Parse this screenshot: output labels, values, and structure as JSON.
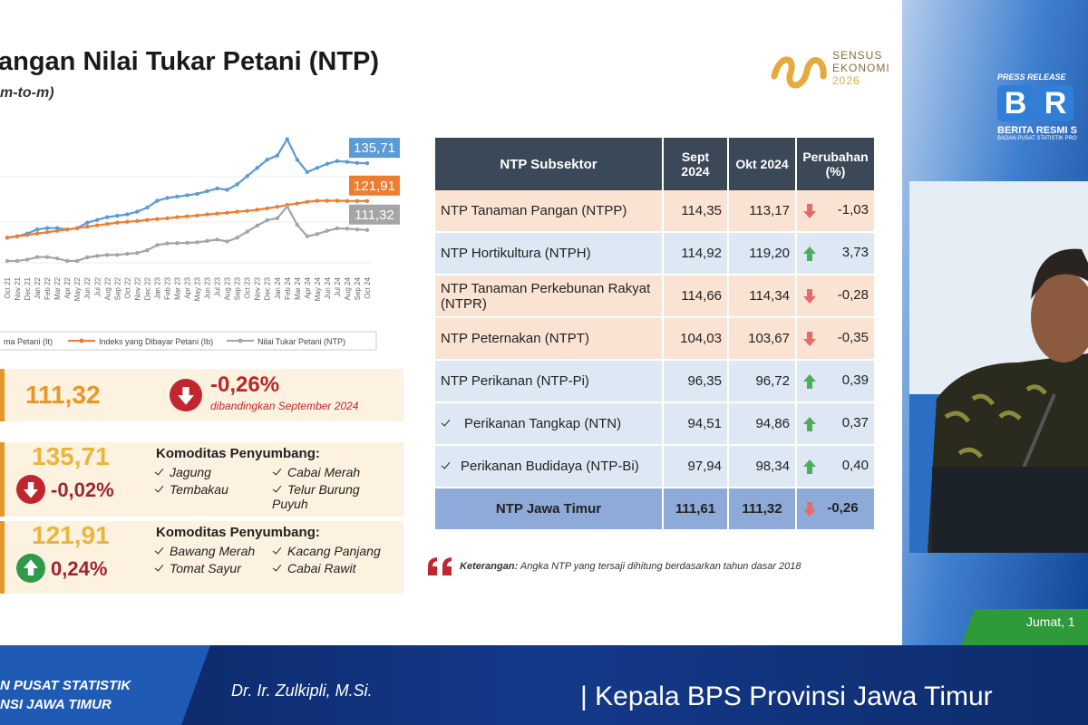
{
  "slide": {
    "title": "angan Nilai Tukar Petani (NTP)",
    "subtitle": "m-to-m)"
  },
  "chart_data": {
    "type": "line",
    "categories": [
      "Oct 21",
      "Nov 21",
      "Dec 21",
      "Jan 22",
      "Feb 22",
      "Mar 22",
      "Apr 22",
      "May 22",
      "Jun 22",
      "Jul 22",
      "Aug 22",
      "Sep 22",
      "Oct 22",
      "Nov 22",
      "Dec 22",
      "Jan 23",
      "Feb 23",
      "Mar 23",
      "Apr 23",
      "May 23",
      "Jun 23",
      "Jul 23",
      "Aug 23",
      "Sep 23",
      "Oct 23",
      "Nov 23",
      "Dec 23",
      "Jan 24",
      "Feb 24",
      "Mar 24",
      "Apr 24",
      "May 24",
      "Jun 24",
      "Jul 24",
      "Aug 24",
      "Sep 24",
      "Oct 24"
    ],
    "ylim": [
      96,
      149
    ],
    "series": [
      {
        "name": "ma Petani (It)",
        "color": "#5b9bd5",
        "values": [
          108.5,
          109,
          110,
          111.5,
          112,
          112,
          111.5,
          112,
          114,
          115,
          116,
          116.5,
          117,
          118,
          119.5,
          122,
          123,
          123.5,
          124,
          124.5,
          125.5,
          126.5,
          126,
          128,
          131,
          134,
          137,
          138.5,
          144.5,
          137,
          132.5,
          134,
          135.5,
          136.5,
          136.2,
          135.8,
          135.71
        ],
        "value_labels": [
          null,
          null,
          null,
          null,
          null,
          null,
          null,
          null,
          null,
          null,
          null,
          null,
          null,
          null,
          null,
          null,
          null,
          null,
          null,
          null,
          null,
          null,
          null,
          null,
          null,
          null,
          null,
          null,
          null,
          null,
          null,
          null,
          null,
          null,
          null,
          null,
          "135,71"
        ]
      },
      {
        "name": "Indeks yang Dibayar Petani (Ib)",
        "color": "#ed7d31",
        "values": [
          108.5,
          109,
          109.5,
          110,
          110.5,
          111,
          111.5,
          112,
          112.5,
          113,
          113.5,
          114,
          114.3,
          114.6,
          115,
          115.3,
          115.6,
          116,
          116.3,
          116.6,
          117,
          117.3,
          117.6,
          118,
          118.3,
          118.7,
          119.2,
          119.8,
          120.5,
          121,
          121.6,
          122,
          122,
          122,
          121.9,
          121.9,
          121.91
        ],
        "value_labels": [
          null,
          null,
          null,
          null,
          null,
          null,
          null,
          null,
          null,
          null,
          null,
          null,
          null,
          null,
          null,
          null,
          null,
          null,
          null,
          null,
          null,
          null,
          null,
          null,
          null,
          null,
          null,
          null,
          null,
          null,
          null,
          null,
          null,
          null,
          null,
          null,
          "121,91"
        ]
      },
      {
        "name": "Nilai Tukar Petani (NTP)",
        "color": "#a5a5a5",
        "values": [
          100,
          100,
          100.5,
          101.4,
          101.4,
          100.9,
          100,
          100,
          101.3,
          101.8,
          102.2,
          102.2,
          102.6,
          102.9,
          103.9,
          105.8,
          106.4,
          106.5,
          106.6,
          106.8,
          107.3,
          107.8,
          107.1,
          108.5,
          110.7,
          112.9,
          114.9,
          115.6,
          119.9,
          113.2,
          109,
          109.8,
          111,
          111.9,
          111.8,
          111.5,
          111.32
        ],
        "value_labels": [
          null,
          null,
          null,
          null,
          null,
          null,
          null,
          null,
          null,
          null,
          null,
          null,
          null,
          null,
          null,
          null,
          null,
          null,
          null,
          null,
          null,
          null,
          null,
          null,
          null,
          null,
          null,
          null,
          null,
          null,
          null,
          null,
          null,
          null,
          null,
          null,
          "111,32"
        ]
      }
    ]
  },
  "summary": [
    {
      "value": "111,32",
      "change": "-0,26%",
      "note": "dibandingkan September 2024"
    },
    {
      "value": "135,71",
      "change": "-0,02%",
      "heading": "Komoditas Penyumbang:",
      "items": [
        "Jagung",
        "Cabai Merah",
        "Tembakau",
        "Telur Burung Puyuh"
      ]
    },
    {
      "value": "121,91",
      "change": "0,24%",
      "heading": "Komoditas Penyumbang:",
      "items": [
        "Bawang Merah",
        "Kacang Panjang",
        "Tomat Sayur",
        "Cabai Rawit"
      ]
    }
  ],
  "table": {
    "header": [
      "NTP Subsektor",
      "Sept 2024",
      "Okt 2024",
      "Perubahan (%)"
    ],
    "rows": [
      [
        "NTP Tanaman Pangan (NTPP)",
        "114,35",
        "113,17",
        "-1,03"
      ],
      [
        "NTP Hortikultura (NTPH)",
        "114,92",
        "119,20",
        "3,73"
      ],
      [
        "NTP Tanaman Perkebunan Rakyat (NTPR)",
        "114,66",
        "114,34",
        "-0,28"
      ],
      [
        "NTP Peternakan (NTPT)",
        "104,03",
        "103,67",
        "-0,35"
      ],
      [
        "NTP Perikanan (NTP-Pi)",
        "96,35",
        "96,72",
        "0,39"
      ],
      [
        "Perikanan Tangkap (NTN)",
        "94,51",
        "94,86",
        "0,37"
      ],
      [
        "Perikanan Budidaya (NTP-Bi)",
        "97,94",
        "98,34",
        "0,40"
      ],
      [
        "NTP Jawa Timur",
        "111,61",
        "111,32",
        "-0,26"
      ]
    ]
  },
  "note": {
    "label": "Keterangan:",
    "text": "Angka NTP yang tersaji dihitung berdasarkan tahun dasar 2018"
  },
  "logo": {
    "lines": [
      "SENSUS",
      "EKONOMI",
      "2026"
    ]
  },
  "brs": {
    "tag": "PRESS RELEASE",
    "letters": [
      "B",
      "R"
    ],
    "name": "BERITA RESMI S",
    "org": "BADAN PUSAT STATISTIK PRO"
  },
  "date": "Jumat, 1",
  "banner": {
    "org": [
      "N PUSAT STATISTIK",
      "NSI JAWA TIMUR"
    ],
    "name": "Dr. Ir. Zulkipli, M.Si.",
    "role": "| Kepala BPS Provinsi Jawa Timur"
  }
}
